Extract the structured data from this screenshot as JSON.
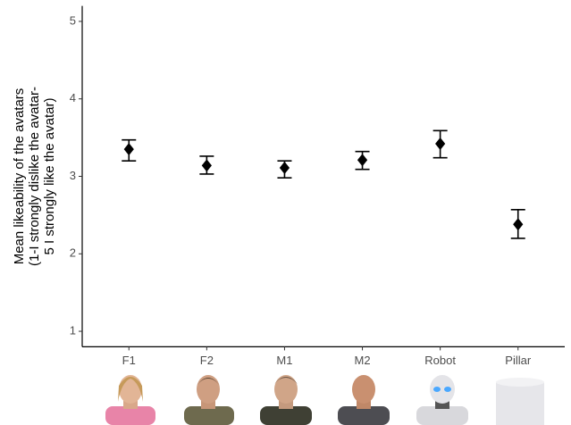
{
  "chart_data": {
    "type": "errorbar",
    "y_label": [
      "Mean likeability of the avatars",
      "(1-I strongly dislike the avatar-",
      "5 I strongly like the avatar)"
    ],
    "categories": [
      "F1",
      "F2",
      "M1",
      "M2",
      "Robot",
      "Pillar"
    ],
    "values": [
      3.35,
      3.14,
      3.11,
      3.21,
      3.42,
      2.38
    ],
    "lower": [
      3.2,
      3.03,
      2.98,
      3.09,
      3.24,
      2.2
    ],
    "upper": [
      3.47,
      3.26,
      3.2,
      3.32,
      3.59,
      2.57
    ],
    "color": "#000000",
    "ylim": [
      0.8,
      5.2
    ],
    "yticks": [
      1,
      2,
      3,
      4,
      5
    ],
    "grid": false
  }
}
